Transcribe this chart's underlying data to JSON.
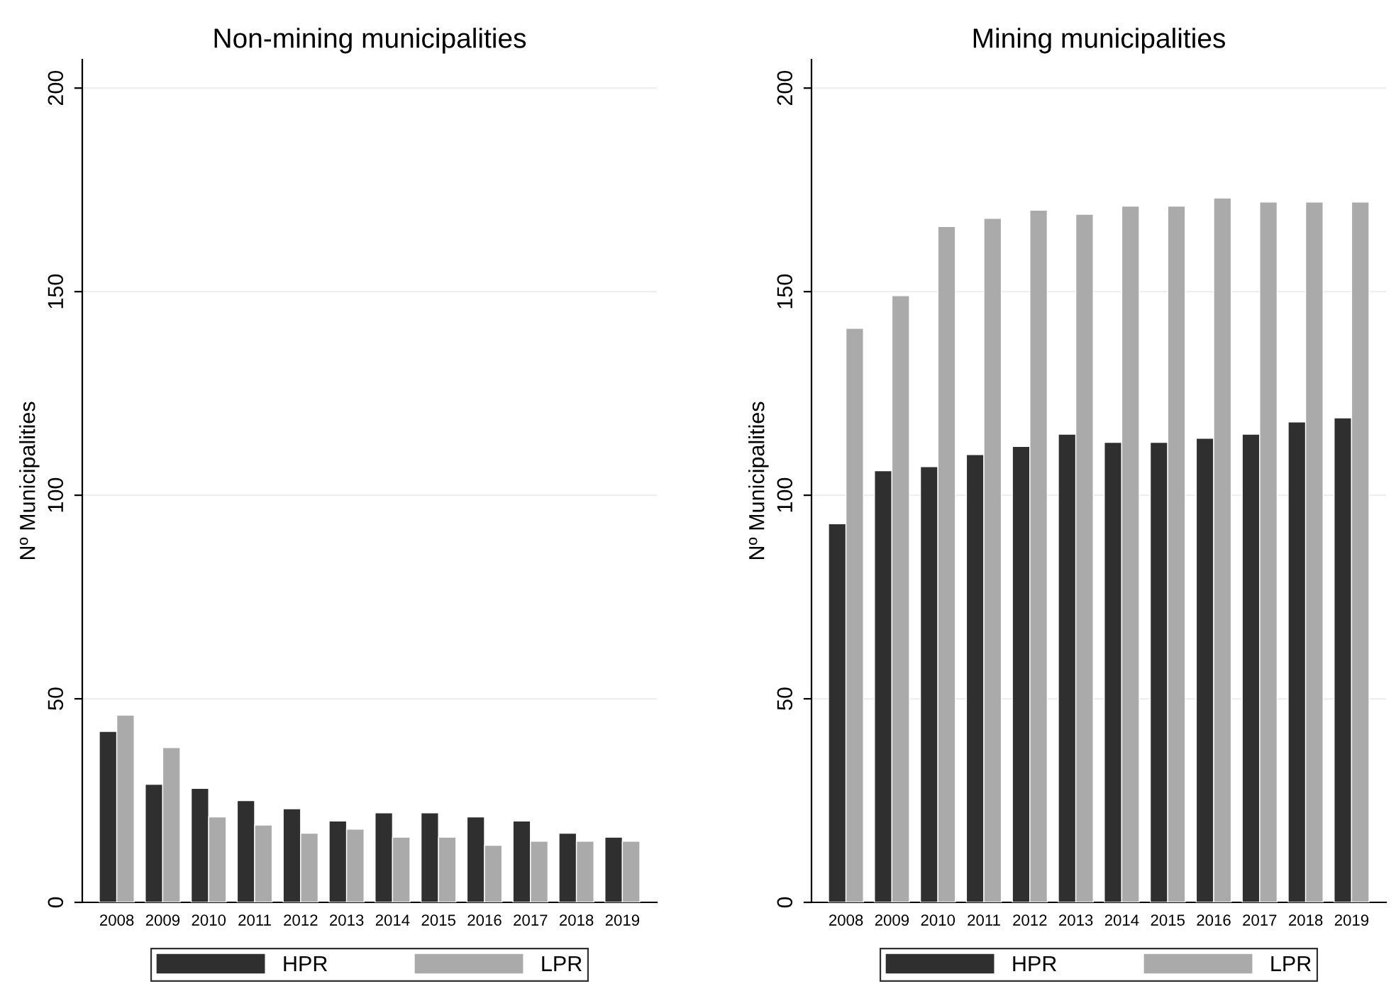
{
  "chart_data": [
    {
      "type": "bar",
      "title": "Non-mining municipalities",
      "ylabel": "Nº Municipalities",
      "categories": [
        "2008",
        "2009",
        "2010",
        "2011",
        "2012",
        "2013",
        "2014",
        "2015",
        "2016",
        "2017",
        "2018",
        "2019"
      ],
      "series": [
        {
          "name": "HPR",
          "color": "#2f2f2f",
          "values": [
            42,
            29,
            28,
            25,
            23,
            20,
            22,
            22,
            21,
            20,
            17,
            16
          ]
        },
        {
          "name": "LPR",
          "color": "#aaaaaa",
          "values": [
            46,
            38,
            21,
            19,
            17,
            18,
            16,
            16,
            14,
            15,
            15,
            15
          ]
        }
      ],
      "ylim": [
        0,
        207
      ],
      "yticks": [
        0,
        50,
        100,
        150,
        200
      ],
      "grid": "y",
      "legend": "bottom"
    },
    {
      "type": "bar",
      "title": "Mining municipalities",
      "ylabel": "Nº Municipalities",
      "categories": [
        "2008",
        "2009",
        "2010",
        "2011",
        "2012",
        "2013",
        "2014",
        "2015",
        "2016",
        "2017",
        "2018",
        "2019"
      ],
      "series": [
        {
          "name": "HPR",
          "color": "#2f2f2f",
          "values": [
            93,
            106,
            107,
            110,
            112,
            115,
            113,
            113,
            114,
            115,
            118,
            119
          ]
        },
        {
          "name": "LPR",
          "color": "#aaaaaa",
          "values": [
            141,
            149,
            166,
            168,
            170,
            169,
            171,
            171,
            173,
            172,
            172,
            172
          ]
        }
      ],
      "ylim": [
        0,
        207
      ],
      "yticks": [
        0,
        50,
        100,
        150,
        200
      ],
      "grid": "y",
      "legend": "bottom"
    }
  ]
}
